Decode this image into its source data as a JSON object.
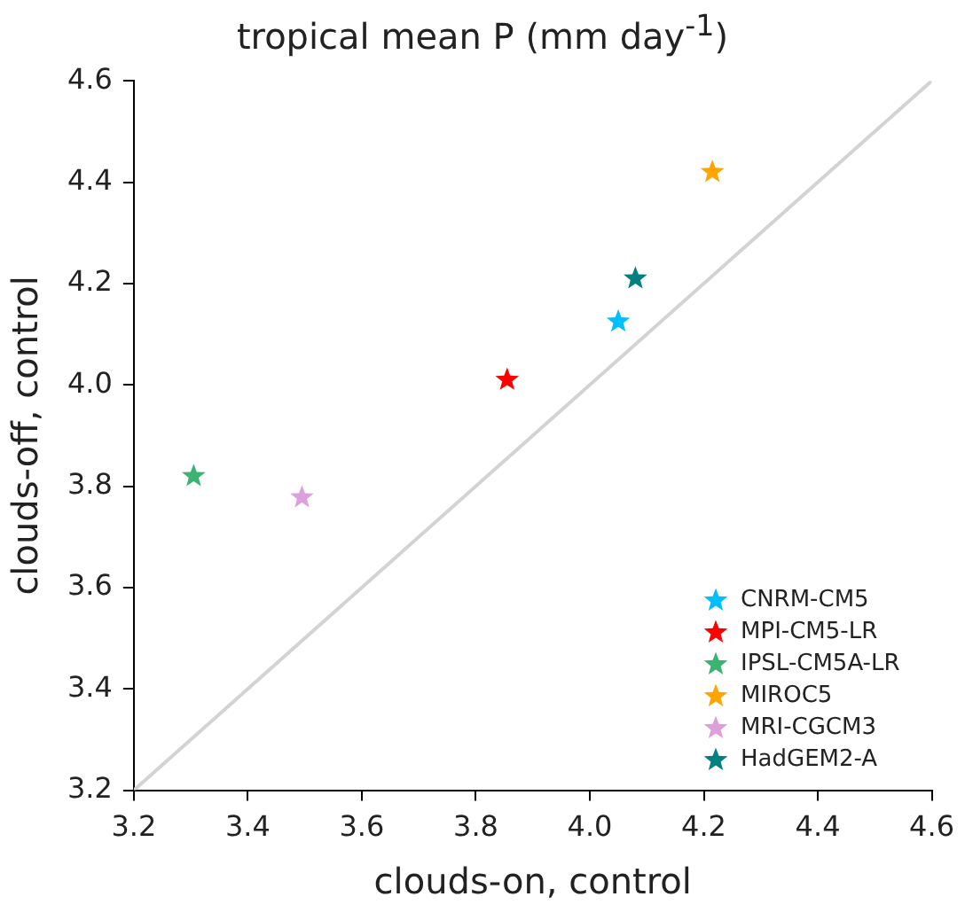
{
  "chart_data": {
    "type": "scatter",
    "title": "tropical mean P (mm day$^{-1}$)",
    "xlabel": "clouds-on, control",
    "ylabel": "clouds-off, control",
    "xlim": [
      3.2,
      4.6
    ],
    "ylim": [
      3.2,
      4.6
    ],
    "xticks": [
      3.2,
      3.4,
      3.6,
      3.8,
      {
        "value": 4,
        "label": "4.0"
      },
      4.2,
      4.4,
      4.6
    ],
    "yticks": [
      3.2,
      3.4,
      3.6,
      3.8,
      {
        "value": 4,
        "label": "4.0"
      },
      4.2,
      4.4,
      4.6
    ],
    "grid": false,
    "legend": "bottom right",
    "marker": "star",
    "series": [
      {
        "type": "line",
        "color": "#d3d3d3",
        "x": [
          3.2,
          4.6
        ],
        "values": [
          3.2,
          4.6
        ],
        "marker": "none",
        "line_style": "solid"
      },
      {
        "name": "CNRM-CM5",
        "color": "#00bfff",
        "x": [
          4.05
        ],
        "values": [
          4.125
        ]
      },
      {
        "name": "MPI-CM5-LR",
        "color": "#ff0000",
        "x": [
          3.855
        ],
        "values": [
          4.01
        ]
      },
      {
        "name": "IPSL-CM5A-LR",
        "color": "#3cb371",
        "x": [
          3.305
        ],
        "values": [
          3.82
        ]
      },
      {
        "name": "MIROC5",
        "color": "#ffa500",
        "x": [
          4.215
        ],
        "values": [
          4.42
        ]
      },
      {
        "name": "MRI-CGCM3",
        "color": "#dda0dd",
        "x": [
          3.495
        ],
        "values": [
          3.778
        ]
      },
      {
        "name": "HadGEM2-A",
        "color": "#008080",
        "x": [
          4.08
        ],
        "values": [
          4.21
        ]
      }
    ]
  }
}
